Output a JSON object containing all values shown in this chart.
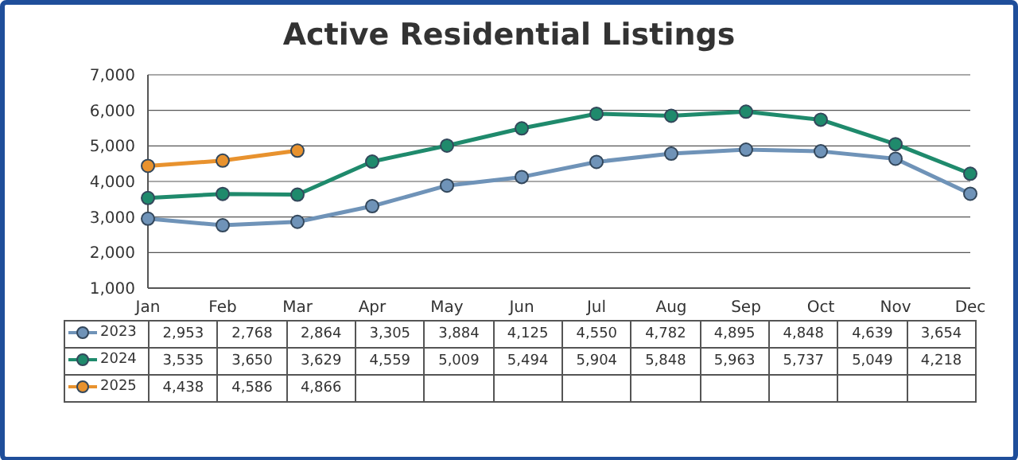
{
  "chart_data": {
    "type": "line",
    "title": "Active Residential Listings",
    "categories": [
      "Jan",
      "Feb",
      "Mar",
      "Apr",
      "May",
      "Jun",
      "Jul",
      "Aug",
      "Sep",
      "Oct",
      "Nov",
      "Dec"
    ],
    "series": [
      {
        "name": "2023",
        "color": "#6f93b8",
        "values": [
          2953,
          2768,
          2864,
          3305,
          3884,
          4125,
          4550,
          4782,
          4895,
          4848,
          4639,
          3654
        ],
        "value_labels": [
          "2,953",
          "2,768",
          "2,864",
          "3,305",
          "3,884",
          "4,125",
          "4,550",
          "4,782",
          "4,895",
          "4,848",
          "4,639",
          "3,654"
        ]
      },
      {
        "name": "2024",
        "color": "#1f8a6c",
        "values": [
          3535,
          3650,
          3629,
          4559,
          5009,
          5494,
          5904,
          5848,
          5963,
          5737,
          5049,
          4218
        ],
        "value_labels": [
          "3,535",
          "3,650",
          "3,629",
          "4,559",
          "5,009",
          "5,494",
          "5,904",
          "5,848",
          "5,963",
          "5,737",
          "5,049",
          "4,218"
        ]
      },
      {
        "name": "2025",
        "color": "#e8922e",
        "values": [
          4438,
          4586,
          4866,
          null,
          null,
          null,
          null,
          null,
          null,
          null,
          null,
          null
        ],
        "value_labels": [
          "4,438",
          "4,586",
          "4,866",
          null,
          null,
          null,
          null,
          null,
          null,
          null,
          null,
          null
        ]
      }
    ],
    "ylim": [
      1000,
      7000
    ],
    "yticks": [
      {
        "value": 1000,
        "label": "1,000"
      },
      {
        "value": 2000,
        "label": "2,000"
      },
      {
        "value": 3000,
        "label": "3,000"
      },
      {
        "value": 4000,
        "label": "4,000"
      },
      {
        "value": 5000,
        "label": "5,000"
      },
      {
        "value": 6000,
        "label": "6,000"
      },
      {
        "value": 7000,
        "label": "7,000"
      }
    ],
    "grid": "y",
    "legend": "bottom",
    "marker": "circle",
    "line_style": "solid"
  }
}
